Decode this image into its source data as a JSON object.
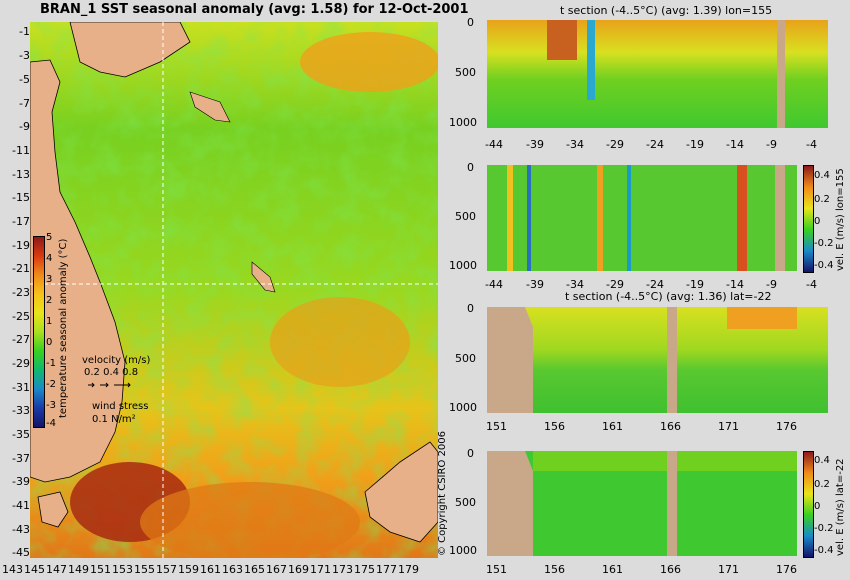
{
  "map": {
    "title": "BRAN_1  SST seasonal anomaly (avg: 1.58) for 12-Oct-2001",
    "lat_ticks": [
      "-1",
      "-3",
      "-5",
      "-7",
      "-9",
      "-11",
      "-13",
      "-15",
      "-17",
      "-19",
      "-21",
      "-23",
      "-25",
      "-27",
      "-29",
      "-31",
      "-33",
      "-35",
      "-37",
      "-39",
      "-41",
      "-43",
      "-45"
    ],
    "lon_ticks": [
      "143",
      "145",
      "147",
      "149",
      "151",
      "153",
      "155",
      "157",
      "159",
      "161",
      "163",
      "165",
      "167",
      "169",
      "171",
      "173",
      "175",
      "177",
      "179"
    ],
    "colorbar": {
      "label": "temperature seasonal anomaly (°C)",
      "ticks": [
        "5",
        "4",
        "3",
        "2",
        "1",
        "0",
        "-1",
        "-2",
        "-3",
        "-4"
      ],
      "colors": [
        "#8b1a1a",
        "#d83a10",
        "#f08a1a",
        "#f6c21a",
        "#e8e41a",
        "#a8e020",
        "#38d020",
        "#10b870",
        "#1a8ac8",
        "#1a3aa8",
        "#141468"
      ]
    },
    "velocity_legend": {
      "title": "velocity (m/s)",
      "values": "0.2 0.4 0.8"
    },
    "wind_legend": {
      "title": "wind stress",
      "value": "0.1 N/m²"
    },
    "copyright": "© Copyright CSIRO 2006"
  },
  "panels": [
    {
      "title": "t section (-4..5°C) (avg: 1.39) lon=155",
      "yticks": [
        "0",
        "500",
        "1000"
      ],
      "xticks": [
        "-44",
        "-39",
        "-34",
        "-29",
        "-24",
        "-19",
        "-14",
        "-9",
        "-4"
      ],
      "colorbar": null
    },
    {
      "title": "",
      "yticks": [
        "0",
        "500",
        "1000"
      ],
      "xticks": [
        "-44",
        "-39",
        "-34",
        "-29",
        "-24",
        "-19",
        "-14",
        "-9",
        "-4"
      ],
      "colorbar": {
        "label": "vel. E (m/s) lon=155",
        "ticks": [
          "0.4",
          "0.2",
          "0",
          "-0.2",
          "-0.4"
        ]
      }
    },
    {
      "title": "t section (-4..5°C) (avg: 1.36) lat=-22",
      "yticks": [
        "0",
        "500",
        "1000"
      ],
      "xticks": [
        "151",
        "156",
        "161",
        "166",
        "171",
        "176"
      ],
      "colorbar": null
    },
    {
      "title": "",
      "yticks": [
        "0",
        "500",
        "1000"
      ],
      "xticks": [
        "151",
        "156",
        "161",
        "166",
        "171",
        "176"
      ],
      "colorbar": {
        "label": "vel. E (m/s) lat=-22",
        "ticks": [
          "0.4",
          "0.2",
          "0",
          "-0.2",
          "-0.4"
        ]
      }
    }
  ],
  "chart_data": [
    {
      "type": "heatmap",
      "title": "BRAN_1  SST seasonal anomaly (avg: 1.58) for 12-Oct-2001",
      "xlabel": "",
      "ylabel": "",
      "x_range": [
        143,
        180
      ],
      "y_range": [
        -45,
        0
      ],
      "colorbar_label": "temperature seasonal anomaly (°C)",
      "colorbar_range": [
        -4,
        5
      ],
      "reference_lines": {
        "lon": 155,
        "lat": -22
      }
    },
    {
      "type": "heatmap",
      "title": "t section (-4..5°C) (avg: 1.39) lon=155",
      "x_range": [
        -45,
        0
      ],
      "y_range": [
        0,
        1050
      ]
    },
    {
      "type": "heatmap",
      "title": "",
      "x_range": [
        -45,
        0
      ],
      "y_range": [
        0,
        1050
      ],
      "colorbar_label": "vel. E (m/s) lon=155",
      "colorbar_range": [
        -0.4,
        0.4
      ]
    },
    {
      "type": "heatmap",
      "title": "t section (-4..5°C) (avg: 1.36) lat=-22",
      "x_range": [
        150,
        180
      ],
      "y_range": [
        0,
        1050
      ]
    },
    {
      "type": "heatmap",
      "title": "",
      "x_range": [
        150,
        180
      ],
      "y_range": [
        0,
        1050
      ],
      "colorbar_label": "vel. E (m/s) lat=-22",
      "colorbar_range": [
        -0.4,
        0.4
      ]
    }
  ]
}
